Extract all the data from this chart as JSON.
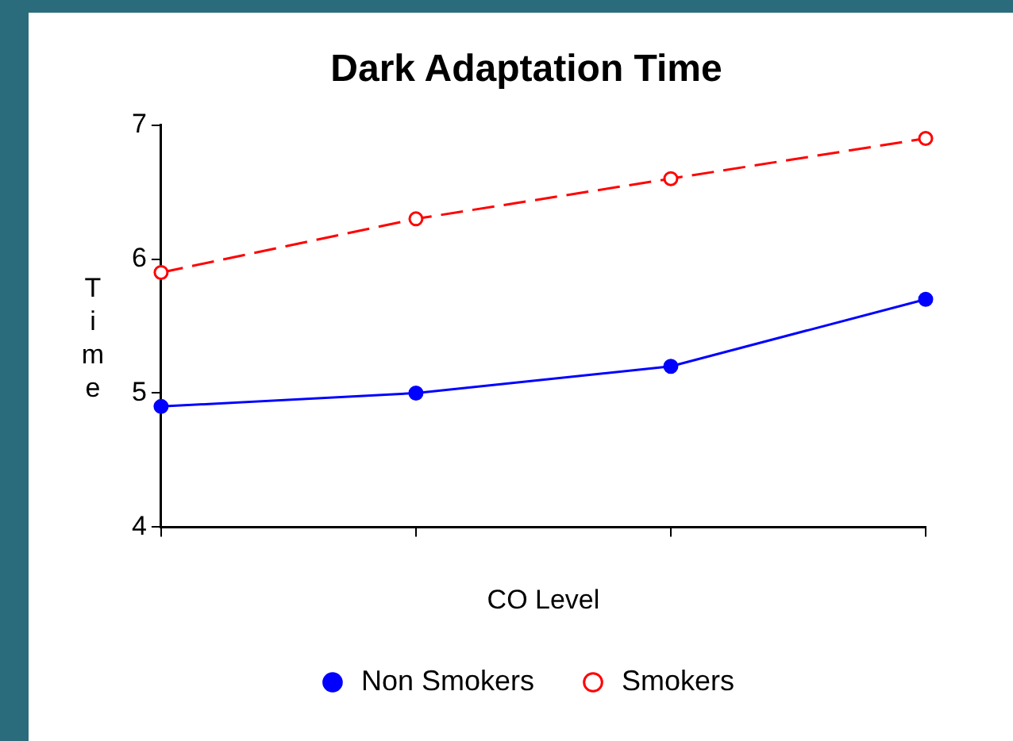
{
  "chart_data": {
    "type": "line",
    "title": "Dark Adaptation Time",
    "xlabel": "CO Level",
    "ylabel": "Time",
    "categories": [
      null,
      null,
      null,
      null
    ],
    "series": [
      {
        "name": "Non Smokers",
        "color": "#0000ff",
        "values": [
          4.9,
          5.0,
          5.2,
          5.7
        ],
        "line_style": "solid"
      },
      {
        "name": "Smokers",
        "color": "#ff0000",
        "values": [
          5.9,
          6.3,
          6.6,
          6.9
        ],
        "line_style": "dashed"
      }
    ],
    "ylim": [
      4,
      7
    ],
    "yticks": [
      4,
      5,
      6,
      7
    ],
    "grid": false,
    "legend": "bottom",
    "marker": "circle"
  }
}
